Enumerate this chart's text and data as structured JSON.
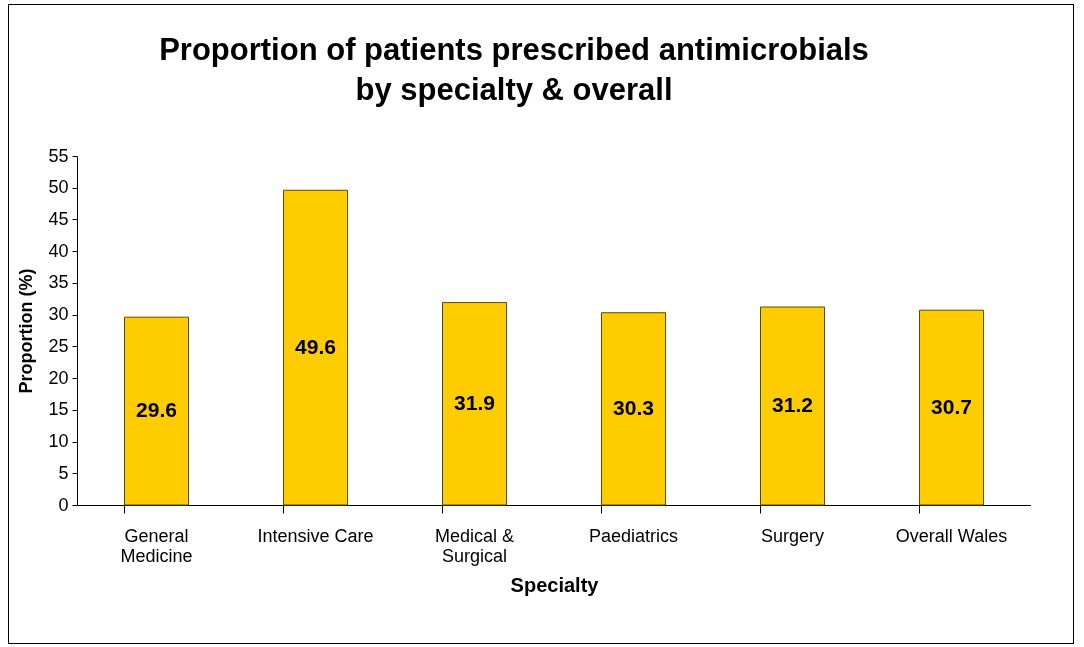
{
  "chart_data": {
    "type": "bar",
    "title": "Proportion of patients prescribed antimicrobials by specialty & overall",
    "xlabel": "Specialty",
    "ylabel": "Proportion (%)",
    "categories": [
      "General Medicine",
      "Intensive Care",
      "Medical & Surgical",
      "Paediatrics",
      "Surgery",
      "Overall Wales"
    ],
    "values": [
      29.6,
      49.6,
      31.9,
      30.3,
      31.2,
      30.7
    ],
    "color": "#ffcc00",
    "data_labels": true,
    "ylim": [
      0,
      55
    ],
    "yticks": [
      0,
      5,
      10,
      15,
      20,
      25,
      30,
      35,
      40,
      45,
      50,
      55
    ],
    "grid": false
  }
}
